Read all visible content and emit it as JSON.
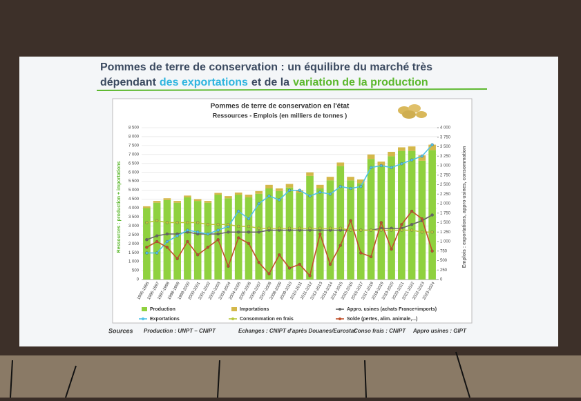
{
  "slide": {
    "title_line1": "Pommes de terre de conservation : un équilibre du marché très",
    "title_a": "dépendant",
    "title_b": "des exportations",
    "title_c": "et de la",
    "title_d": "variation de la production"
  },
  "chart_data": {
    "type": "bar",
    "title": "Pommes de terre de conservation en l'état",
    "subtitle": "Ressources - Emplois  (en milliers de tonnes )",
    "y_label": "Ressources : production + importations",
    "y2_label": "Emplois : exportations, appro usines, consommation",
    "categories": [
      "1995-1996",
      "1996-1997",
      "1997-1998",
      "1998-1999",
      "1999-2000",
      "2000-2001",
      "2001-2002",
      "2002-2003",
      "2003-2004",
      "2004-2005",
      "2005-2006",
      "2006-2007",
      "2007-2008",
      "2008-2009",
      "2009-2010",
      "2010-2011",
      "2011-2012",
      "2012-2013",
      "2013-2014",
      "2014-2015",
      "2015-2016",
      "2016-2017",
      "2017-2018",
      "2018-2019",
      "2019-2020",
      "2020-2021",
      "2021-2022",
      "2022-2023",
      "2023-2024"
    ],
    "ylim": [
      0,
      8500
    ],
    "yticks": [
      0,
      500,
      {
        "value": 1000,
        "label": "1 000"
      },
      {
        "value": 1500,
        "label": "1 500"
      },
      {
        "value": 2000,
        "label": "2 000"
      },
      {
        "value": 2500,
        "label": "2 500"
      },
      {
        "value": 3000,
        "label": "3 000"
      },
      {
        "value": 3500,
        "label": "3 500"
      },
      {
        "value": 4000,
        "label": "4 000"
      },
      {
        "value": 4500,
        "label": "4 500"
      },
      {
        "value": 5000,
        "label": "5 000"
      },
      {
        "value": 5500,
        "label": "5 500"
      },
      {
        "value": 6000,
        "label": "6 000"
      },
      {
        "value": 6500,
        "label": "6 500"
      },
      {
        "value": 7000,
        "label": "7 000"
      },
      {
        "value": 7500,
        "label": "7 500"
      },
      {
        "value": 8000,
        "label": "8 000"
      },
      {
        "value": 8500,
        "label": "8 500"
      }
    ],
    "y2lim": [
      0,
      4000
    ],
    "y2ticks": [
      0,
      250,
      500,
      750,
      {
        "value": 1000,
        "label": "1 000"
      },
      {
        "value": 1250,
        "label": "1 250"
      },
      {
        "value": 1500,
        "label": "1 500"
      },
      {
        "value": 1750,
        "label": "1 750"
      },
      {
        "value": 2000,
        "label": "2 000"
      },
      {
        "value": 2250,
        "label": "2 250"
      },
      {
        "value": 2500,
        "label": "2 500"
      },
      {
        "value": 2750,
        "label": "2 750"
      },
      {
        "value": 3000,
        "label": "3 000"
      },
      {
        "value": 3250,
        "label": "3 250"
      },
      {
        "value": 3500,
        "label": "3 500"
      },
      {
        "value": 3750,
        "label": "3 750"
      },
      {
        "value": 4000,
        "label": "4 000"
      }
    ],
    "grid": true,
    "series": [
      {
        "name": "Production",
        "type": "bar",
        "color": "#8fd13f",
        "values": [
          4000,
          4300,
          4450,
          4300,
          4600,
          4400,
          4300,
          4750,
          4550,
          4750,
          4600,
          4800,
          5100,
          4950,
          5150,
          4850,
          5800,
          5100,
          5550,
          6350,
          5550,
          5400,
          6750,
          6350,
          6900,
          7200,
          7200,
          6650,
          7250
        ]
      },
      {
        "name": "Importations",
        "type": "bar",
        "color": "#d4b84a",
        "values": [
          100,
          100,
          100,
          100,
          100,
          100,
          100,
          100,
          120,
          120,
          150,
          150,
          200,
          150,
          200,
          150,
          200,
          200,
          200,
          200,
          200,
          200,
          250,
          250,
          250,
          200,
          250,
          300,
          300
        ]
      },
      {
        "name": "Appro. usines (achats France+imports)",
        "type": "line",
        "axis": "y2",
        "color": "#666666",
        "values": [
          1050,
          1150,
          1200,
          1200,
          1250,
          1200,
          1200,
          1200,
          1250,
          1250,
          1250,
          1250,
          1300,
          1300,
          1300,
          1300,
          1300,
          1300,
          1300,
          1300,
          1300,
          1300,
          1300,
          1350,
          1350,
          1350,
          1450,
          1550,
          1700
        ]
      },
      {
        "name": "Exportations",
        "type": "line",
        "axis": "y2",
        "color": "#4fc3e8",
        "values": [
          700,
          700,
          1000,
          1150,
          1300,
          1250,
          1200,
          1300,
          1400,
          1800,
          1600,
          2000,
          2200,
          2100,
          2350,
          2350,
          2200,
          2300,
          2250,
          2450,
          2400,
          2450,
          2950,
          3000,
          2950,
          3050,
          3150,
          3250,
          3550
        ]
      },
      {
        "name": "Consommation en frais",
        "type": "line",
        "axis": "y2",
        "color": "#b8c83a",
        "values": [
          1500,
          1550,
          1500,
          1500,
          1500,
          1500,
          1450,
          1450,
          1450,
          1400,
          1400,
          1350,
          1350,
          1350,
          1350,
          1350,
          1350,
          1350,
          1350,
          1350,
          1300,
          1300,
          1300,
          1300,
          1300,
          1300,
          1300,
          1250,
          1250
        ]
      },
      {
        "name": "Solde (pertes, alim. animale,...)",
        "type": "line",
        "axis": "y2",
        "color": "#c0502a",
        "values": [
          850,
          1000,
          850,
          550,
          1000,
          650,
          850,
          1050,
          350,
          1100,
          950,
          450,
          150,
          650,
          300,
          400,
          100,
          1200,
          400,
          900,
          1550,
          700,
          600,
          1500,
          800,
          1450,
          1800,
          1600,
          750
        ]
      }
    ]
  },
  "sources": {
    "label": "Sources",
    "production": "Production : UNPT – CNIPT",
    "echanges": "Echanges : CNIPT d'après Douanes/Eurostat",
    "conso": "Conso frais : CNIPT",
    "appro": "Appro usines : GIPT"
  }
}
